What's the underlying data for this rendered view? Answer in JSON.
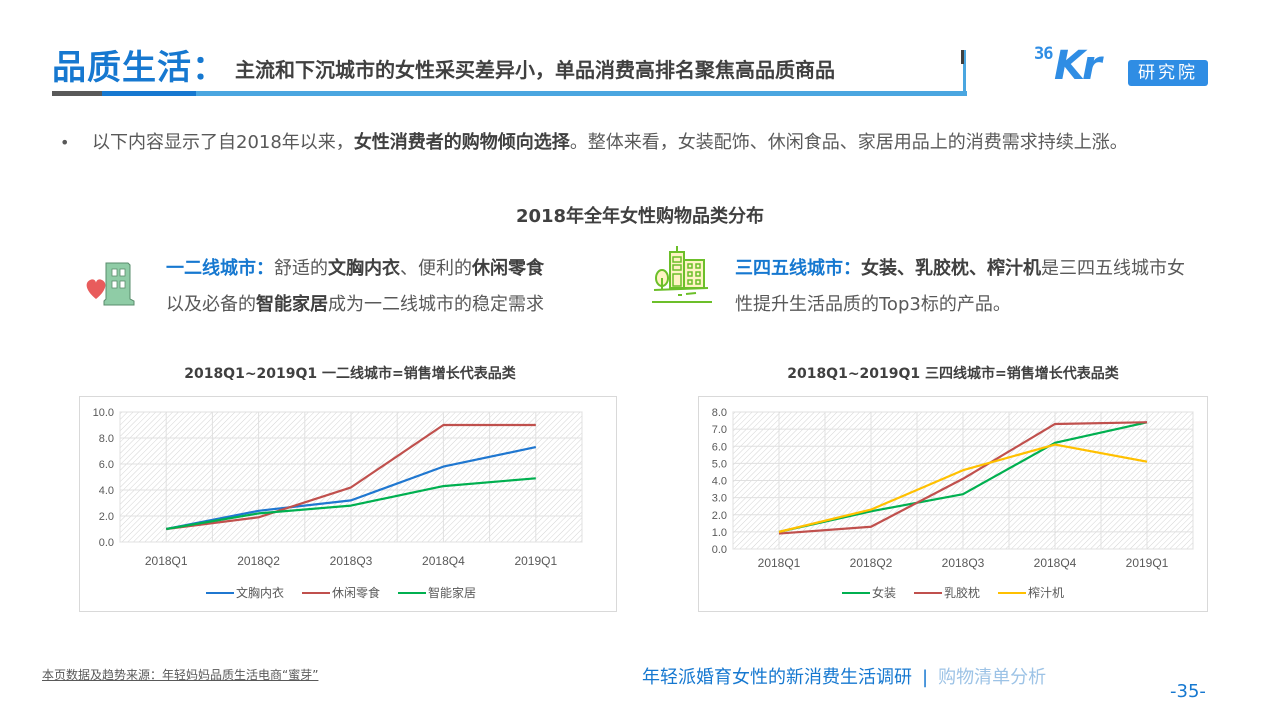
{
  "header": {
    "title_main": "品质生活：",
    "title_sub": "主流和下沉城市的女性采买差异小，单品消费高排名聚焦高品质商品",
    "logo": {
      "number": "36",
      "brand": "Kr",
      "badge": "研究院"
    }
  },
  "intro": {
    "bullet": "•",
    "text_before": "以下内容显示了自2018年以来，",
    "text_bold": "女性消费者的购物倾向选择",
    "text_after": "。整体来看，女装配饰、休闲食品、家居用品上的消费需求持续上涨。"
  },
  "section_title": "2018年全年女性购物品类分布",
  "left_city": {
    "icon": "building-heart-icon",
    "label": "一二线城市：",
    "t1": "舒适的",
    "b1": "文胸内衣",
    "t2": "、便利的",
    "b2": "休闲零食",
    "t3": "以及必备的",
    "b3": "智能家居",
    "t4": "成为一二线城市的稳定需求"
  },
  "right_city": {
    "icon": "city-buildings-tree-icon",
    "label": "三四五线城市：",
    "b1": "女装、乳胶枕、榨汁机",
    "t1": "是三四五线城市女性提升生活品质的Top3标的产品。"
  },
  "chart_data": [
    {
      "type": "line",
      "title": "2018Q1~2019Q1 一二线城市=销售增长代表品类",
      "categories": [
        "2018Q1",
        "2018Q2",
        "2018Q3",
        "2018Q4",
        "2019Q1"
      ],
      "series": [
        {
          "name": "文胸内衣",
          "color": "#1f77d0",
          "values": [
            1.0,
            2.4,
            3.2,
            5.8,
            7.3
          ]
        },
        {
          "name": "休闲零食",
          "color": "#c0504d",
          "values": [
            1.0,
            1.9,
            4.2,
            9.0,
            9.0
          ]
        },
        {
          "name": "智能家居",
          "color": "#00b050",
          "values": [
            1.0,
            2.2,
            2.8,
            4.3,
            4.9
          ]
        }
      ],
      "yticks": [
        "0.0",
        "2.0",
        "4.0",
        "6.0",
        "8.0",
        "10.0"
      ],
      "ylim": [
        0,
        10
      ],
      "xlabel": "",
      "ylabel": "",
      "grid": true,
      "legend_position": "bottom"
    },
    {
      "type": "line",
      "title": "2018Q1~2019Q1 三四线城市=销售增长代表品类",
      "categories": [
        "2018Q1",
        "2018Q2",
        "2018Q3",
        "2018Q4",
        "2019Q1"
      ],
      "series": [
        {
          "name": "女装",
          "color": "#00b050",
          "values": [
            1.0,
            2.2,
            3.2,
            6.2,
            7.4
          ]
        },
        {
          "name": "乳胶枕",
          "color": "#c0504d",
          "values": [
            0.9,
            1.3,
            4.1,
            7.3,
            7.4
          ]
        },
        {
          "name": "榨汁机",
          "color": "#ffc000",
          "values": [
            1.0,
            2.3,
            4.6,
            6.1,
            5.1
          ]
        }
      ],
      "yticks": [
        "0.0",
        "1.0",
        "2.0",
        "3.0",
        "4.0",
        "5.0",
        "6.0",
        "7.0",
        "8.0"
      ],
      "ylim": [
        0,
        8
      ],
      "xlabel": "",
      "ylabel": "",
      "grid": true,
      "legend_position": "bottom"
    }
  ],
  "footer": {
    "source": "本页数据及趋势来源：年轻妈妈品质生活电商“蜜芽”",
    "report": "年轻派婚育女性的新消费生活调研",
    "separator": "|",
    "section": "购物清单分析",
    "page": "-35-"
  },
  "colors": {
    "accent": "#1678d0",
    "accent_light": "#4aa6e0",
    "text": "#595959",
    "text_dark": "#404040"
  }
}
